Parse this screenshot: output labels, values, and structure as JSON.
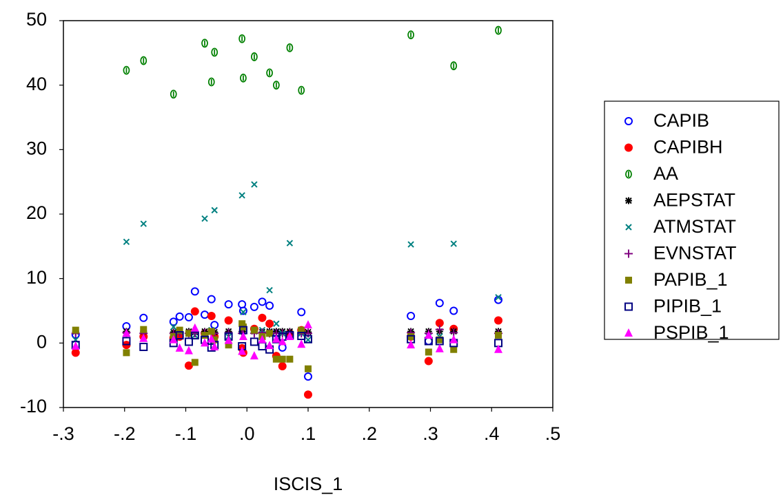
{
  "chart_data": {
    "type": "scatter",
    "x_label": "ISCIS_1",
    "xlim": [
      -0.3,
      0.5
    ],
    "ylim": [
      -10,
      50
    ],
    "xticks": [
      {
        "value": -0.3,
        "label": "-.3"
      },
      {
        "value": -0.2,
        "label": "-.2"
      },
      {
        "value": -0.1,
        "label": "-.1"
      },
      {
        "value": 0,
        "label": ".0"
      },
      {
        "value": 0.1,
        "label": ".1"
      },
      {
        "value": 0.2,
        "label": ".2"
      },
      {
        "value": 0.3,
        "label": ".3"
      },
      {
        "value": 0.4,
        "label": ".4"
      },
      {
        "value": 0.5,
        "label": ".5"
      }
    ],
    "yticks": [
      -10,
      0,
      10,
      20,
      30,
      40,
      50
    ],
    "legend": "right",
    "x": [
      -0.28,
      -0.197,
      -0.169,
      -0.12,
      -0.11,
      -0.095,
      -0.085,
      -0.069,
      -0.058,
      -0.053,
      -0.03,
      -0.008,
      -0.006,
      0.012,
      0.025,
      0.037,
      0.048,
      0.058,
      0.07,
      0.089,
      0.1,
      0.268,
      0.297,
      0.315,
      0.338,
      0.411
    ],
    "series": [
      {
        "name": "CAPIB",
        "color": "#0000ff",
        "marker": "circle-open",
        "values": [
          1.3,
          2.6,
          3.9,
          3.3,
          4.1,
          4.0,
          8.0,
          4.4,
          6.8,
          2.8,
          6.0,
          6.0,
          5.0,
          5.6,
          6.4,
          5.8,
          1.5,
          -0.7,
          1.2,
          4.8,
          -5.2,
          4.2,
          0.3,
          6.2,
          5.0,
          6.7
        ]
      },
      {
        "name": "CAPIBH",
        "color": "#ff0000",
        "marker": "circle",
        "values": [
          -1.5,
          -0.3,
          1.0,
          0.8,
          1.0,
          -3.5,
          4.9,
          1.5,
          4.2,
          1.0,
          3.5,
          -0.8,
          -1.5,
          2.2,
          3.9,
          3.0,
          -2.0,
          -3.6,
          1.5,
          2.0,
          -8.0,
          1.0,
          -2.8,
          3.1,
          2.2,
          3.5
        ]
      },
      {
        "name": "AA",
        "color": "#008000",
        "marker": "circle-dot",
        "values": [
          null,
          42.3,
          43.8,
          38.6,
          null,
          null,
          null,
          46.5,
          40.5,
          45.1,
          null,
          47.2,
          41.1,
          44.4,
          null,
          41.9,
          40.0,
          null,
          45.8,
          39.2,
          null,
          47.8,
          null,
          null,
          43.0,
          48.5
        ]
      },
      {
        "name": "AEPSTAT",
        "color": "#000000",
        "marker": "asterisk",
        "values": [
          1.8,
          1.8,
          1.8,
          1.7,
          1.8,
          1.8,
          1.7,
          1.8,
          1.8,
          1.7,
          1.8,
          1.8,
          1.8,
          1.8,
          1.7,
          1.8,
          1.8,
          1.8,
          1.8,
          1.8,
          1.7,
          1.8,
          1.8,
          1.8,
          1.8,
          1.8
        ]
      },
      {
        "name": "ATMSTAT",
        "color": "#008080",
        "marker": "x",
        "values": [
          0.5,
          15.7,
          18.5,
          2.5,
          1.8,
          1.5,
          1.2,
          19.3,
          2.0,
          20.6,
          1.0,
          22.9,
          4.8,
          24.6,
          2.0,
          8.2,
          3.0,
          1.5,
          15.5,
          1.5,
          0.5,
          15.3,
          1.0,
          1.0,
          15.4,
          7.1
        ]
      },
      {
        "name": "EVNSTAT",
        "color": "#800080",
        "marker": "plus",
        "values": [
          1.5,
          1.6,
          1.5,
          1.5,
          1.6,
          1.5,
          1.5,
          1.6,
          1.5,
          1.5,
          1.6,
          1.5,
          1.5,
          1.5,
          1.6,
          1.5,
          1.5,
          1.5,
          1.6,
          1.5,
          1.5,
          1.6,
          1.5,
          2.1,
          1.6,
          1.5
        ]
      },
      {
        "name": "PAPIB_1",
        "color": "#808000",
        "marker": "square",
        "values": [
          2.0,
          -1.5,
          2.1,
          1.0,
          2.0,
          1.5,
          -3.0,
          1.2,
          1.8,
          0.5,
          -0.3,
          3.0,
          2.5,
          2.0,
          1.0,
          1.5,
          -2.5,
          -2.5,
          -2.5,
          2.0,
          -4.0,
          1.0,
          -1.4,
          0.5,
          -1.0,
          1.2
        ]
      },
      {
        "name": "PIPIB_1",
        "color": "#000080",
        "marker": "square-open",
        "values": [
          -0.3,
          0.3,
          -0.6,
          0.0,
          1.2,
          0.2,
          1.2,
          0.5,
          -0.7,
          -0.3,
          1.0,
          -0.5,
          2.0,
          0.2,
          -0.5,
          -1.0,
          0.6,
          1.0,
          1.2,
          1.1,
          0.6,
          0.6,
          0.3,
          0.3,
          0.0,
          0.0
        ]
      },
      {
        "name": "PSPIB_1",
        "color": "#ff00ff",
        "marker": "triangle",
        "values": [
          -0.5,
          1.5,
          0.7,
          0.5,
          -0.8,
          -1.2,
          2.3,
          0.0,
          0.6,
          -0.6,
          0.4,
          -1.3,
          1.0,
          -2.0,
          0.5,
          -0.4,
          0.6,
          0.2,
          1.0,
          -0.2,
          2.8,
          -0.3,
          1.2,
          -0.9,
          0.5,
          -1.0
        ]
      }
    ]
  }
}
